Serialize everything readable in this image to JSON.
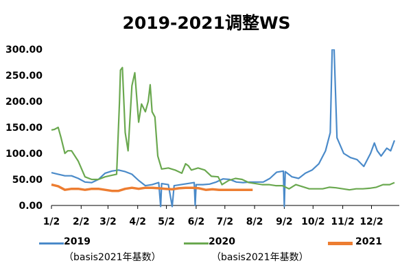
{
  "chart_data": {
    "type": "line",
    "title": "2019-2021调整WS",
    "xlabel": "",
    "ylabel": "",
    "ylim": [
      0,
      300
    ],
    "yticks": [
      "0.00",
      "50.00",
      "100.00",
      "150.00",
      "200.00",
      "250.00",
      "300.00"
    ],
    "xticks": [
      "1/2",
      "2/2",
      "3/2",
      "4/2",
      "5/2",
      "6/2",
      "7/2",
      "8/2",
      "9/2",
      "10/2",
      "11/2",
      "12/2"
    ],
    "grid": false,
    "legend_position": "bottom",
    "series": [
      {
        "name": "2019",
        "sub": "（basis2021年基数）",
        "color": "#4a8ac9",
        "points": [
          [
            "1/2",
            63
          ],
          [
            "1/9",
            60
          ],
          [
            "1/16",
            57
          ],
          [
            "1/23",
            57
          ],
          [
            "1/30",
            52
          ],
          [
            "2/6",
            45
          ],
          [
            "2/13",
            44
          ],
          [
            "2/20",
            50
          ],
          [
            "2/27",
            62
          ],
          [
            "3/6",
            66
          ],
          [
            "3/13",
            68
          ],
          [
            "3/20",
            65
          ],
          [
            "3/27",
            60
          ],
          [
            "4/3",
            48
          ],
          [
            "4/10",
            38
          ],
          [
            "4/17",
            40
          ],
          [
            "4/24",
            44
          ],
          [
            "4/26",
            -2
          ],
          [
            "4/27",
            42
          ],
          [
            "5/4",
            40
          ],
          [
            "5/8",
            -2
          ],
          [
            "5/10",
            38
          ],
          [
            "5/17",
            40
          ],
          [
            "5/24",
            42
          ],
          [
            "5/31",
            44
          ],
          [
            "6/1",
            0
          ],
          [
            "6/2",
            40
          ],
          [
            "6/9",
            40
          ],
          [
            "6/16",
            41
          ],
          [
            "6/23",
            45
          ],
          [
            "6/30",
            51
          ],
          [
            "7/7",
            50
          ],
          [
            "7/14",
            45
          ],
          [
            "7/21",
            44
          ],
          [
            "7/28",
            45
          ],
          [
            "8/4",
            45
          ],
          [
            "8/11",
            45
          ],
          [
            "8/18",
            52
          ],
          [
            "8/25",
            64
          ],
          [
            "9/1",
            66
          ],
          [
            "9/2",
            -2
          ],
          [
            "9/3",
            65
          ],
          [
            "9/10",
            55
          ],
          [
            "9/17",
            52
          ],
          [
            "9/24",
            62
          ],
          [
            "10/1",
            68
          ],
          [
            "10/8",
            80
          ],
          [
            "10/15",
            105
          ],
          [
            "10/20",
            140
          ],
          [
            "10/22",
            300
          ],
          [
            "10/24",
            300
          ],
          [
            "10/27",
            130
          ],
          [
            "11/3",
            100
          ],
          [
            "11/10",
            92
          ],
          [
            "11/17",
            88
          ],
          [
            "11/24",
            75
          ],
          [
            "12/1",
            100
          ],
          [
            "12/5",
            120
          ],
          [
            "12/8",
            105
          ],
          [
            "12/12",
            95
          ],
          [
            "12/18",
            110
          ],
          [
            "12/22",
            105
          ],
          [
            "12/26",
            125
          ]
        ]
      },
      {
        "name": "2020",
        "sub": "（basis2021年基数）",
        "color": "#6aa84f",
        "points": [
          [
            "1/2",
            145
          ],
          [
            "1/5",
            146
          ],
          [
            "1/9",
            150
          ],
          [
            "1/12",
            130
          ],
          [
            "1/16",
            100
          ],
          [
            "1/19",
            105
          ],
          [
            "1/23",
            105
          ],
          [
            "1/30",
            85
          ],
          [
            "2/6",
            55
          ],
          [
            "2/13",
            50
          ],
          [
            "2/20",
            50
          ],
          [
            "2/27",
            55
          ],
          [
            "3/6",
            58
          ],
          [
            "3/11",
            60
          ],
          [
            "3/14",
            200
          ],
          [
            "3/15",
            260
          ],
          [
            "3/17",
            265
          ],
          [
            "3/20",
            140
          ],
          [
            "3/23",
            105
          ],
          [
            "3/27",
            230
          ],
          [
            "3/30",
            255
          ],
          [
            "4/3",
            160
          ],
          [
            "4/6",
            195
          ],
          [
            "4/10",
            180
          ],
          [
            "4/13",
            200
          ],
          [
            "4/15",
            232
          ],
          [
            "4/17",
            180
          ],
          [
            "4/20",
            170
          ],
          [
            "4/23",
            95
          ],
          [
            "4/27",
            70
          ],
          [
            "5/4",
            72
          ],
          [
            "5/11",
            68
          ],
          [
            "5/18",
            62
          ],
          [
            "5/22",
            80
          ],
          [
            "5/25",
            76
          ],
          [
            "5/28",
            68
          ],
          [
            "6/4",
            72
          ],
          [
            "6/11",
            68
          ],
          [
            "6/18",
            56
          ],
          [
            "6/25",
            55
          ],
          [
            "6/29",
            40
          ],
          [
            "7/6",
            48
          ],
          [
            "7/13",
            52
          ],
          [
            "7/20",
            50
          ],
          [
            "7/27",
            44
          ],
          [
            "8/3",
            42
          ],
          [
            "8/10",
            40
          ],
          [
            "8/17",
            40
          ],
          [
            "8/24",
            38
          ],
          [
            "8/31",
            38
          ],
          [
            "9/7",
            32
          ],
          [
            "9/14",
            40
          ],
          [
            "9/21",
            36
          ],
          [
            "9/28",
            32
          ],
          [
            "10/5",
            32
          ],
          [
            "10/12",
            32
          ],
          [
            "10/19",
            35
          ],
          [
            "10/26",
            34
          ],
          [
            "11/2",
            32
          ],
          [
            "11/9",
            30
          ],
          [
            "11/16",
            32
          ],
          [
            "11/23",
            32
          ],
          [
            "11/30",
            33
          ],
          [
            "12/7",
            35
          ],
          [
            "12/14",
            40
          ],
          [
            "12/21",
            40
          ],
          [
            "12/26",
            44
          ]
        ]
      },
      {
        "name": "2021",
        "sub": "",
        "color": "#ed7d31",
        "points": [
          [
            "1/2",
            40
          ],
          [
            "1/9",
            37
          ],
          [
            "1/16",
            30
          ],
          [
            "1/23",
            32
          ],
          [
            "1/30",
            32
          ],
          [
            "2/6",
            30
          ],
          [
            "2/13",
            32
          ],
          [
            "2/20",
            32
          ],
          [
            "2/27",
            30
          ],
          [
            "3/6",
            28
          ],
          [
            "3/13",
            28
          ],
          [
            "3/20",
            32
          ],
          [
            "3/27",
            34
          ],
          [
            "4/3",
            32
          ],
          [
            "4/10",
            34
          ],
          [
            "4/17",
            34
          ],
          [
            "4/24",
            33
          ],
          [
            "5/1",
            32
          ],
          [
            "5/8",
            31
          ],
          [
            "5/15",
            33
          ],
          [
            "5/22",
            34
          ],
          [
            "5/29",
            34
          ],
          [
            "6/5",
            33
          ],
          [
            "6/12",
            30
          ],
          [
            "6/19",
            31
          ],
          [
            "6/26",
            30
          ],
          [
            "7/3",
            30
          ],
          [
            "7/10",
            30
          ],
          [
            "7/17",
            30
          ],
          [
            "7/24",
            30
          ],
          [
            "7/31",
            30
          ]
        ]
      }
    ]
  }
}
